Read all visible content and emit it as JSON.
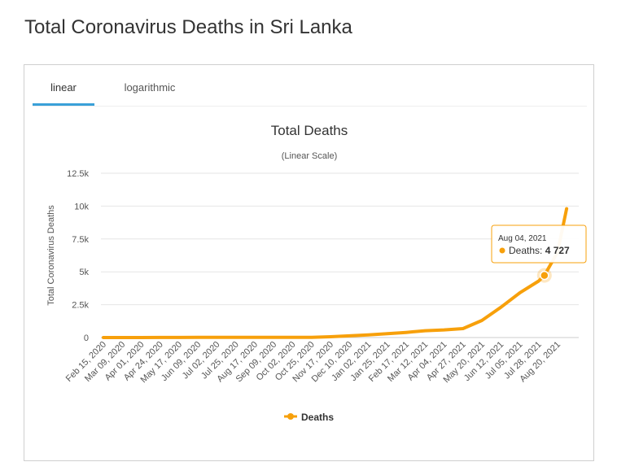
{
  "page": {
    "title": "Total Coronavirus Deaths in Sri Lanka"
  },
  "tabs": [
    {
      "label": "linear",
      "active": true
    },
    {
      "label": "logarithmic",
      "active": false
    }
  ],
  "colors": {
    "series": "#f7a00b",
    "tab_accent": "#3aa0d8",
    "grid": "#e6e6e6"
  },
  "chart_data": {
    "type": "line",
    "title": "Total Deaths",
    "subtitle": "(Linear Scale)",
    "ylabel": "Total Coronavirus Deaths",
    "xlabel": "",
    "ylim": [
      0,
      12500
    ],
    "yticks": [
      0,
      2500,
      5000,
      7500,
      10000,
      12500
    ],
    "ytick_labels": [
      "0",
      "2.5k",
      "5k",
      "7.5k",
      "10k",
      "12.5k"
    ],
    "xtick_labels": [
      "Feb 15, 2020",
      "Mar 09, 2020",
      "Apr 01, 2020",
      "Apr 24, 2020",
      "May 17, 2020",
      "Jun 09, 2020",
      "Jul 02, 2020",
      "Jul 25, 2020",
      "Aug 17, 2020",
      "Sep 09, 2020",
      "Oct 02, 2020",
      "Oct 25, 2020",
      "Nov 17, 2020",
      "Dec 10, 2020",
      "Jan 02, 2021",
      "Jan 25, 2021",
      "Feb 17, 2021",
      "Mar 12, 2021",
      "Apr 04, 2021",
      "Apr 27, 2021",
      "May 20, 2021",
      "Jun 12, 2021",
      "Jul 05, 2021",
      "Jul 28, 2021",
      "Aug 20, 2021"
    ],
    "grid": true,
    "legend_position": "bottom-center",
    "series": [
      {
        "name": "Deaths",
        "x": [
          "Feb 15, 2020",
          "Mar 09, 2020",
          "Apr 01, 2020",
          "Apr 24, 2020",
          "May 17, 2020",
          "Jun 09, 2020",
          "Jul 02, 2020",
          "Jul 25, 2020",
          "Aug 17, 2020",
          "Sep 09, 2020",
          "Oct 02, 2020",
          "Oct 25, 2020",
          "Nov 17, 2020",
          "Dec 10, 2020",
          "Jan 02, 2021",
          "Jan 25, 2021",
          "Feb 17, 2021",
          "Mar 12, 2021",
          "Apr 04, 2021",
          "Apr 27, 2021",
          "May 20, 2021",
          "Jun 12, 2021",
          "Jul 05, 2021",
          "Jul 28, 2021",
          "Aug 04, 2021",
          "Aug 20, 2021",
          "Aug 31, 2021"
        ],
        "values": [
          0,
          0,
          2,
          7,
          9,
          11,
          11,
          11,
          12,
          12,
          13,
          16,
          60,
          130,
          200,
          290,
          390,
          520,
          580,
          680,
          1300,
          2300,
          3400,
          4300,
          4727,
          6500,
          9800
        ]
      }
    ],
    "tooltip": {
      "date": "Aug 04, 2021",
      "series": "Deaths",
      "value": "4 727"
    }
  }
}
